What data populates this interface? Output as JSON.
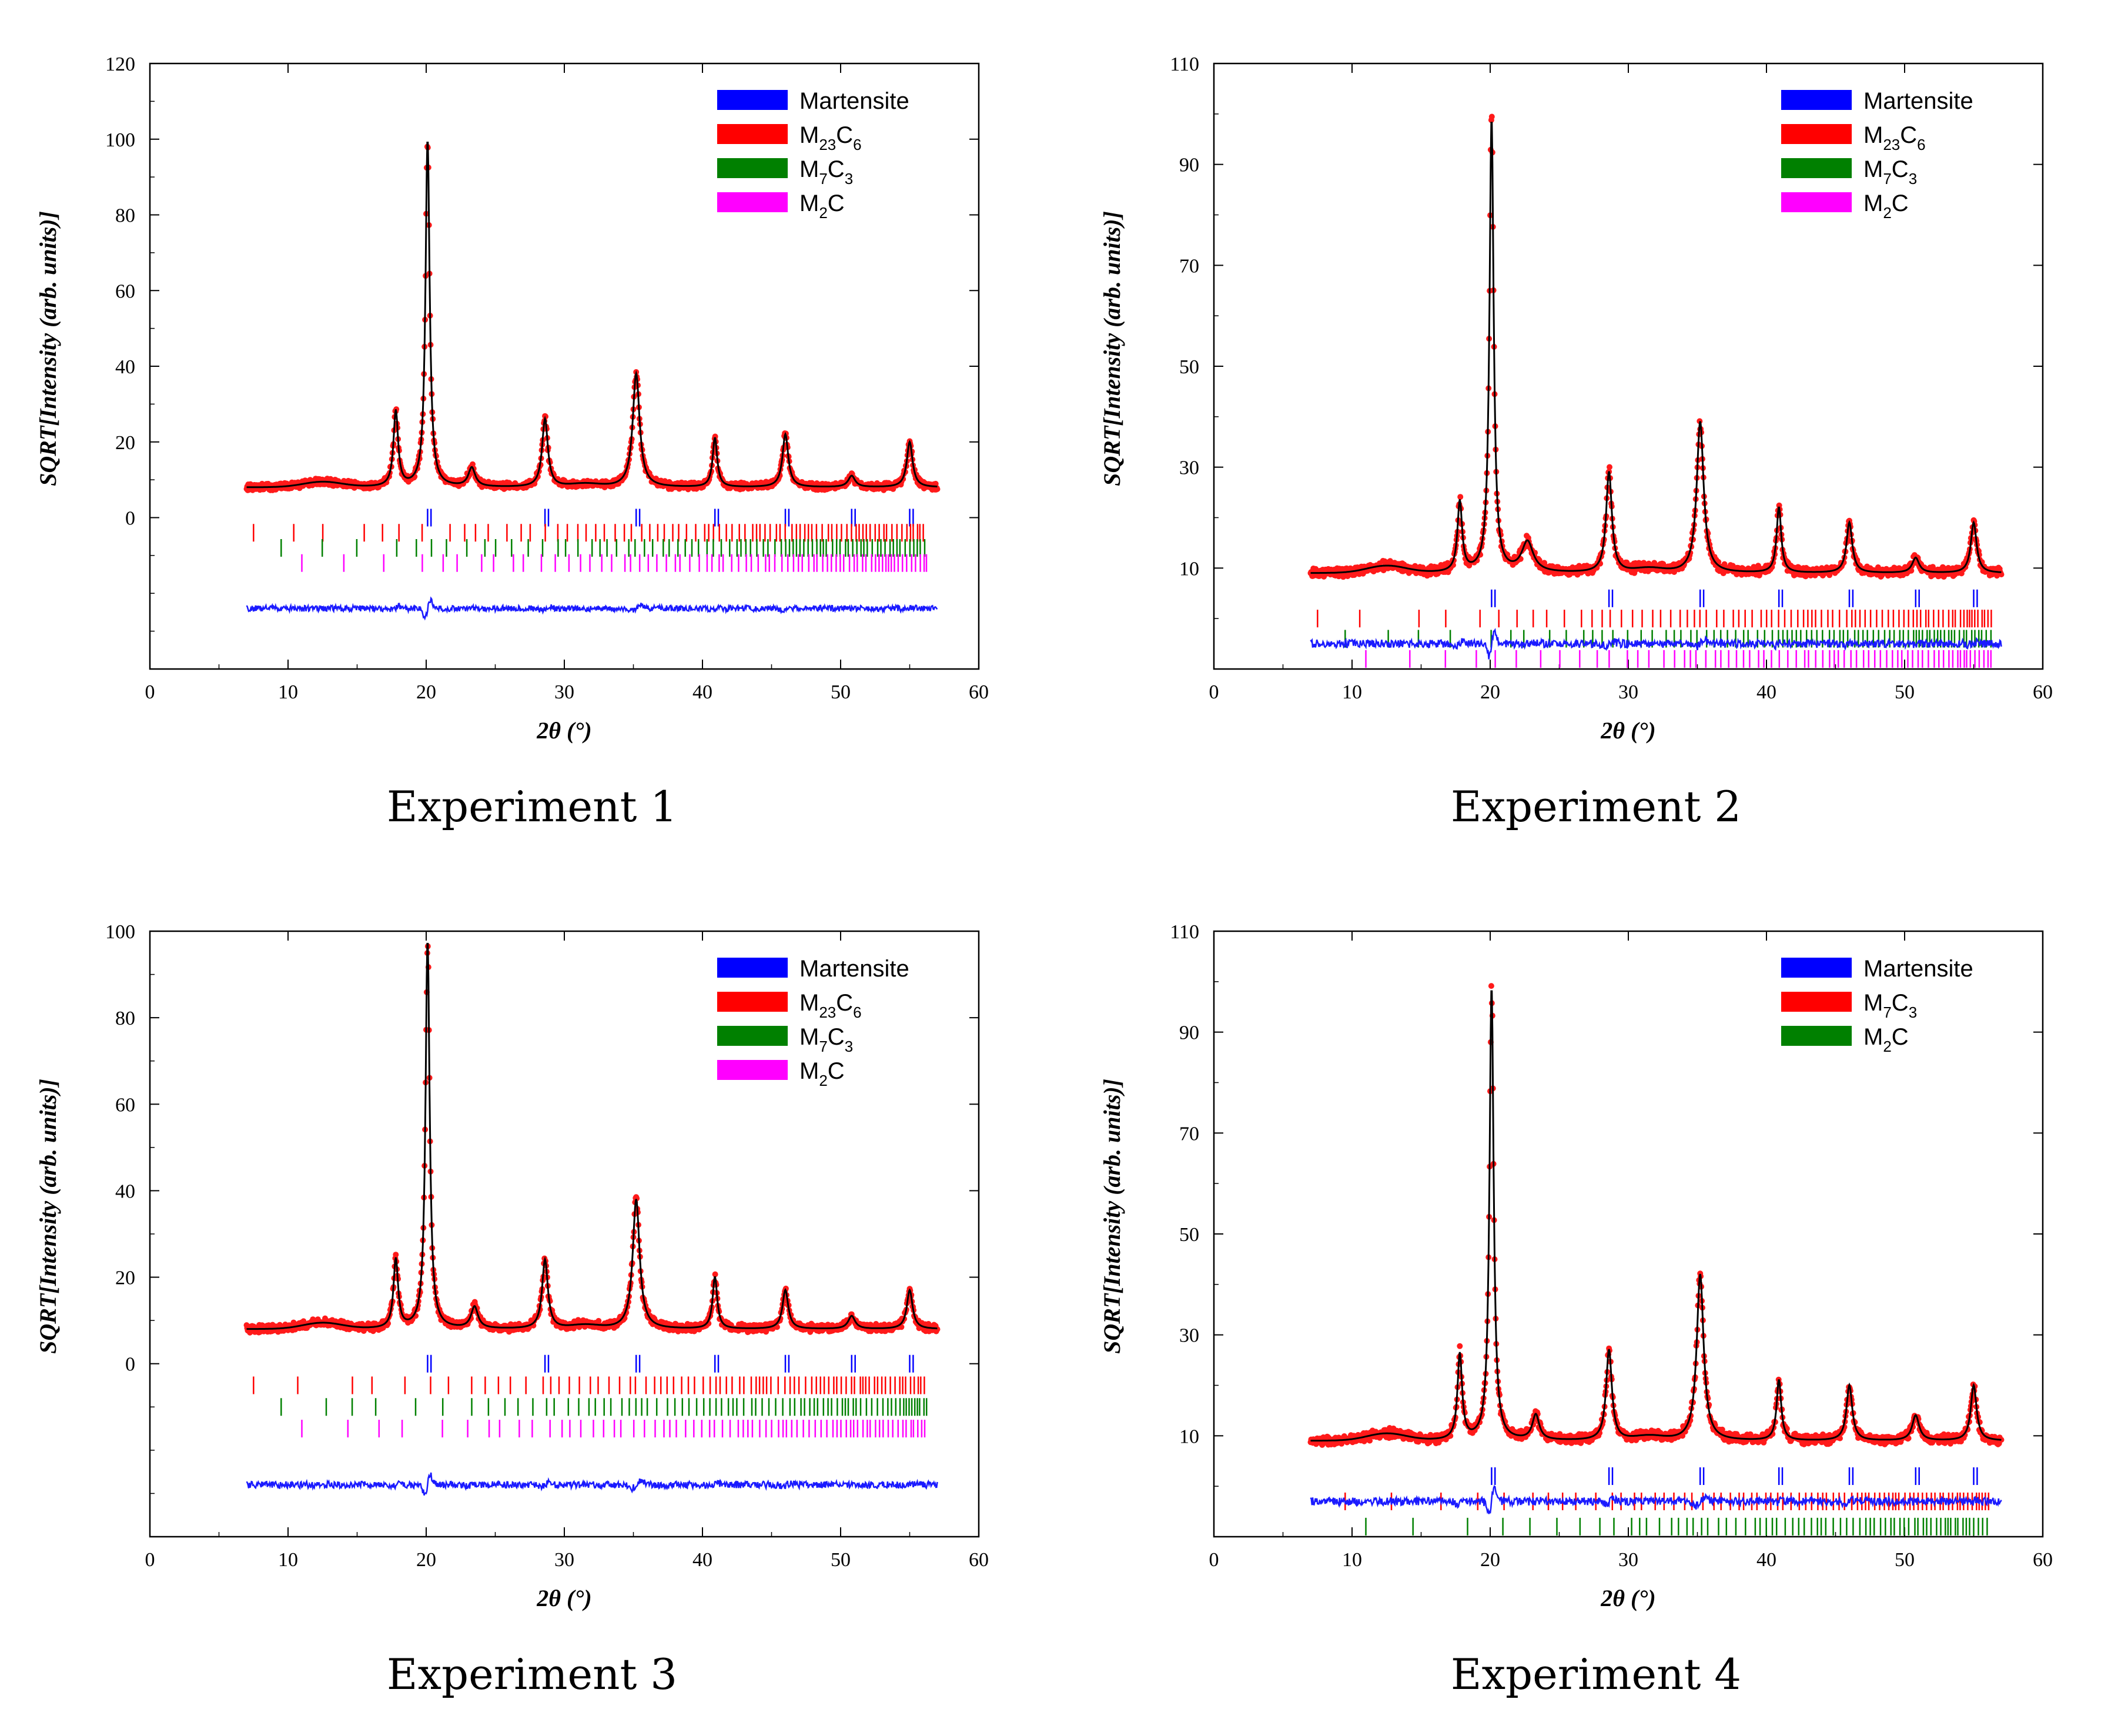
{
  "chart_data": [
    {
      "type": "line",
      "caption": "Experiment 1",
      "xlabel": "2θ (°)",
      "ylabel": "SQRT[Intensity (arb. units)]",
      "xlim": [
        0,
        60
      ],
      "ylim": [
        -40,
        120
      ],
      "xticks": [
        "0",
        "10",
        "20",
        "30",
        "40",
        "50",
        "60"
      ],
      "yticks": [
        {
          "v": 0,
          "t": "0"
        },
        {
          "v": 20,
          "t": "20"
        },
        {
          "v": 40,
          "t": "40"
        },
        {
          "v": 60,
          "t": "60"
        },
        {
          "v": 80,
          "t": "80"
        },
        {
          "v": 100,
          "t": "100"
        },
        {
          "v": 120,
          "t": "120"
        }
      ],
      "baseline": 8,
      "peaks": [
        [
          17.8,
          20,
          0.2
        ],
        [
          20.1,
          92,
          0.18
        ],
        [
          23.3,
          5,
          0.3
        ],
        [
          28.6,
          18,
          0.25
        ],
        [
          35.2,
          30,
          0.3
        ],
        [
          40.9,
          13,
          0.2
        ],
        [
          46.0,
          14,
          0.25
        ],
        [
          50.8,
          3,
          0.3
        ],
        [
          55.0,
          12,
          0.25
        ]
      ],
      "legend": [
        {
          "label": "Martensite",
          "main": "Martensite",
          "sub1": "",
          "mid": "",
          "sub2": "",
          "color": "#0000ff"
        },
        {
          "label": "M23C6",
          "main": "M",
          "sub1": "23",
          "mid": "C",
          "sub2": "6",
          "color": "#ff0000"
        },
        {
          "label": "M7C3",
          "main": "M",
          "sub1": "7",
          "mid": "C",
          "sub2": "3",
          "color": "#008000"
        },
        {
          "label": "M2C",
          "main": "M",
          "sub1": "2",
          "mid": "C",
          "sub2": "",
          "color": "#ff00ff"
        }
      ],
      "phase_rows": [
        {
          "color": "#0000ff",
          "y": 0,
          "start": 20.0,
          "reflections": [
            20.1,
            28.6,
            35.2,
            40.9,
            46.0,
            50.8,
            55.0
          ]
        },
        {
          "color": "#ff0000",
          "y": -4,
          "start": 7.5,
          "reflections": []
        },
        {
          "color": "#008000",
          "y": -8,
          "start": 9.5,
          "reflections": []
        },
        {
          "color": "#ff00ff",
          "y": -12,
          "start": 11.0,
          "reflections": []
        }
      ],
      "residual_y": -24
    },
    {
      "type": "line",
      "caption": "Experiment 2",
      "xlabel": "2θ (°)",
      "ylabel": "SQRT[Intensity (arb. units)]",
      "xlim": [
        0,
        60
      ],
      "ylim": [
        -10,
        110
      ],
      "xticks": [
        "0",
        "10",
        "20",
        "30",
        "40",
        "50",
        "60"
      ],
      "yticks": [
        {
          "v": 10,
          "t": "10"
        },
        {
          "v": 30,
          "t": "30"
        },
        {
          "v": 50,
          "t": "50"
        },
        {
          "v": 70,
          "t": "70"
        },
        {
          "v": 90,
          "t": "90"
        },
        {
          "v": 110,
          "t": "110"
        }
      ],
      "baseline": 9,
      "peaks": [
        [
          17.8,
          14,
          0.2
        ],
        [
          20.1,
          90,
          0.18
        ],
        [
          22.7,
          6,
          0.5
        ],
        [
          28.6,
          20,
          0.25
        ],
        [
          35.2,
          30,
          0.3
        ],
        [
          40.9,
          13,
          0.2
        ],
        [
          46.0,
          10,
          0.25
        ],
        [
          50.8,
          3,
          0.3
        ],
        [
          55.0,
          10,
          0.25
        ]
      ],
      "legend": [
        {
          "label": "Martensite",
          "main": "Martensite",
          "sub1": "",
          "mid": "",
          "sub2": "",
          "color": "#0000ff"
        },
        {
          "label": "M23C6",
          "main": "M",
          "sub1": "23",
          "mid": "C",
          "sub2": "6",
          "color": "#ff0000"
        },
        {
          "label": "M7C3",
          "main": "M",
          "sub1": "7",
          "mid": "C",
          "sub2": "3",
          "color": "#008000"
        },
        {
          "label": "M2C",
          "main": "M",
          "sub1": "2",
          "mid": "C",
          "sub2": "",
          "color": "#ff00ff"
        }
      ],
      "phase_rows": [
        {
          "color": "#0000ff",
          "y": 4,
          "start": 20.0,
          "reflections": [
            20.1,
            28.6,
            35.2,
            40.9,
            46.0,
            50.8,
            55.0
          ]
        },
        {
          "color": "#ff0000",
          "y": 0,
          "start": 7.5,
          "reflections": []
        },
        {
          "color": "#008000",
          "y": -4,
          "start": 9.5,
          "reflections": []
        },
        {
          "color": "#ff00ff",
          "y": -8,
          "start": 11.0,
          "reflections": []
        }
      ],
      "residual_y": -5
    },
    {
      "type": "line",
      "caption": "Experiment 3",
      "xlabel": "2θ (°)",
      "ylabel": "SQRT[Intensity (arb. units)]",
      "xlim": [
        0,
        60
      ],
      "ylim": [
        -40,
        100
      ],
      "xticks": [
        "0",
        "10",
        "20",
        "30",
        "40",
        "50",
        "60"
      ],
      "yticks": [
        {
          "v": 0,
          "t": "0"
        },
        {
          "v": 20,
          "t": "20"
        },
        {
          "v": 40,
          "t": "40"
        },
        {
          "v": 60,
          "t": "60"
        },
        {
          "v": 80,
          "t": "80"
        },
        {
          "v": 100,
          "t": "100"
        }
      ],
      "baseline": 8,
      "peaks": [
        [
          17.8,
          16,
          0.2
        ],
        [
          20.1,
          90,
          0.18
        ],
        [
          23.5,
          5,
          0.3
        ],
        [
          28.6,
          16,
          0.25
        ],
        [
          35.2,
          30,
          0.3
        ],
        [
          40.9,
          12,
          0.2
        ],
        [
          46.0,
          9,
          0.25
        ],
        [
          50.8,
          3,
          0.3
        ],
        [
          55.0,
          9,
          0.25
        ]
      ],
      "legend": [
        {
          "label": "Martensite",
          "main": "Martensite",
          "sub1": "",
          "mid": "",
          "sub2": "",
          "color": "#0000ff"
        },
        {
          "label": "M23C6",
          "main": "M",
          "sub1": "23",
          "mid": "C",
          "sub2": "6",
          "color": "#ff0000"
        },
        {
          "label": "M7C3",
          "main": "M",
          "sub1": "7",
          "mid": "C",
          "sub2": "3",
          "color": "#008000"
        },
        {
          "label": "M2C",
          "main": "M",
          "sub1": "2",
          "mid": "C",
          "sub2": "",
          "color": "#ff00ff"
        }
      ],
      "phase_rows": [
        {
          "color": "#0000ff",
          "y": 0,
          "start": 20.0,
          "reflections": [
            20.1,
            28.6,
            35.2,
            40.9,
            46.0,
            50.8,
            55.0
          ]
        },
        {
          "color": "#ff0000",
          "y": -5,
          "start": 7.5,
          "reflections": []
        },
        {
          "color": "#008000",
          "y": -10,
          "start": 9.5,
          "reflections": []
        },
        {
          "color": "#ff00ff",
          "y": -15,
          "start": 11.0,
          "reflections": []
        }
      ],
      "residual_y": -28
    },
    {
      "type": "line",
      "caption": "Experiment 4",
      "xlabel": "2θ (°)",
      "ylabel": "SQRT[Intensity (arb. units)]",
      "xlim": [
        0,
        60
      ],
      "ylim": [
        -10,
        110
      ],
      "xticks": [
        "0",
        "10",
        "20",
        "30",
        "40",
        "50",
        "60"
      ],
      "yticks": [
        {
          "v": 10,
          "t": "10"
        },
        {
          "v": 30,
          "t": "30"
        },
        {
          "v": 50,
          "t": "50"
        },
        {
          "v": 70,
          "t": "70"
        },
        {
          "v": 90,
          "t": "90"
        },
        {
          "v": 110,
          "t": "110"
        }
      ],
      "baseline": 9,
      "peaks": [
        [
          17.8,
          17,
          0.2
        ],
        [
          20.1,
          90,
          0.18
        ],
        [
          23.3,
          5,
          0.3
        ],
        [
          28.6,
          18,
          0.25
        ],
        [
          35.2,
          33,
          0.3
        ],
        [
          40.9,
          12,
          0.2
        ],
        [
          46.0,
          11,
          0.25
        ],
        [
          50.8,
          5,
          0.3
        ],
        [
          55.0,
          11,
          0.25
        ]
      ],
      "legend": [
        {
          "label": "Martensite",
          "main": "Martensite",
          "sub1": "",
          "mid": "",
          "sub2": "",
          "color": "#0000ff"
        },
        {
          "label": "M7C3",
          "main": "M",
          "sub1": "7",
          "mid": "C",
          "sub2": "3",
          "color": "#ff0000"
        },
        {
          "label": "M2C",
          "main": "M",
          "sub1": "2",
          "mid": "C",
          "sub2": "",
          "color": "#008000"
        }
      ],
      "phase_rows": [
        {
          "color": "#0000ff",
          "y": 2,
          "start": 20.0,
          "reflections": [
            20.1,
            28.6,
            35.2,
            40.9,
            46.0,
            50.8,
            55.0
          ]
        },
        {
          "color": "#ff0000",
          "y": -3,
          "start": 9.5,
          "reflections": []
        },
        {
          "color": "#008000",
          "y": -8,
          "start": 11.0,
          "reflections": []
        }
      ],
      "residual_y": -3
    }
  ]
}
